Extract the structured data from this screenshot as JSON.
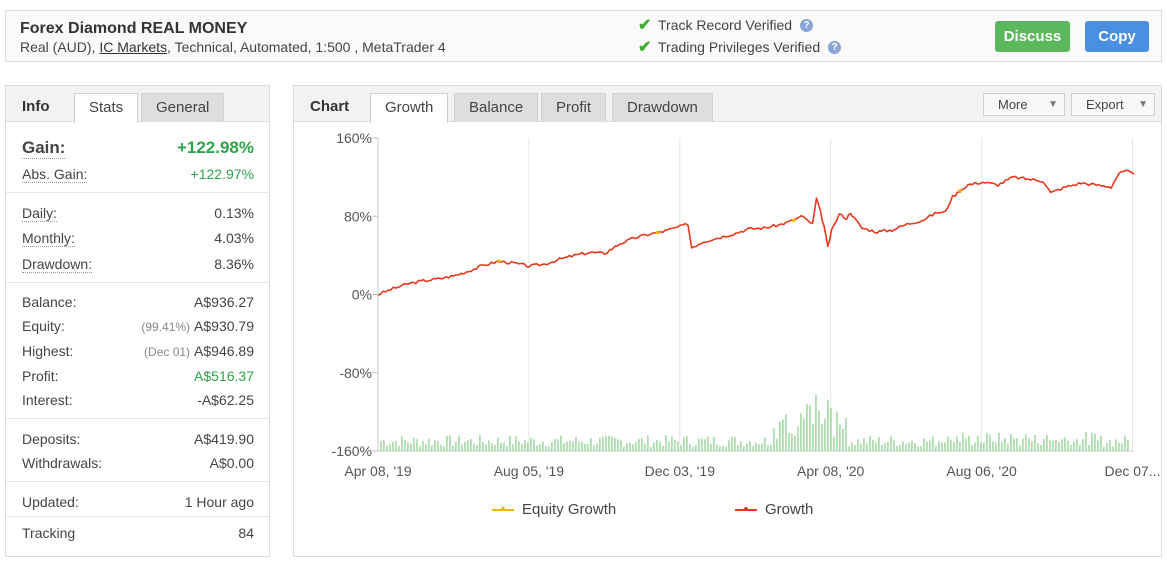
{
  "header": {
    "title": "Forex Diamond REAL MONEY",
    "subtitle_pre": "Real (AUD), ",
    "broker": "IC Markets",
    "subtitle_post": ", Technical, Automated, 1:500 , MetaTrader 4",
    "verified": [
      {
        "label": "Track Record Verified",
        "icon": "check-icon"
      },
      {
        "label": "Trading Privileges Verified",
        "icon": "check-icon"
      }
    ],
    "discuss_label": "Discuss",
    "copy_label": "Copy"
  },
  "info": {
    "title": "Info",
    "tabs": [
      "Stats",
      "General"
    ],
    "gain_label": "Gain:",
    "gain_value": "+122.98%",
    "abs_gain_label": "Abs. Gain:",
    "abs_gain_value": "+122.97%",
    "daily_label": "Daily:",
    "daily_value": "0.13%",
    "monthly_label": "Monthly:",
    "monthly_value": "4.03%",
    "drawdown_label": "Drawdown:",
    "drawdown_value": "8.36%",
    "balance_label": "Balance:",
    "balance_value": "A$936.27",
    "equity_label": "Equity:",
    "equity_pct": "(99.41%)",
    "equity_value": "A$930.79",
    "highest_label": "Highest:",
    "highest_date": "(Dec 01)",
    "highest_value": "A$946.89",
    "profit_label": "Profit:",
    "profit_value": "A$516.37",
    "interest_label": "Interest:",
    "interest_value": "-A$62.25",
    "deposits_label": "Deposits:",
    "deposits_value": "A$419.90",
    "withdrawals_label": "Withdrawals:",
    "withdrawals_value": "A$0.00",
    "updated_label": "Updated:",
    "updated_value": "1 Hour ago",
    "tracking_label": "Tracking",
    "tracking_value": "84"
  },
  "chart_panel": {
    "title": "Chart",
    "tabs": [
      "Growth",
      "Balance",
      "Profit",
      "Drawdown"
    ],
    "more_label": "More",
    "export_label": "Export"
  },
  "chart_data": {
    "type": "line",
    "yticks": [
      "160%",
      "80%",
      "0%",
      "-80%",
      "-160%"
    ],
    "ytick_values": [
      160,
      80,
      0,
      -80,
      -160
    ],
    "ylim": [
      -160,
      160
    ],
    "xticks": [
      "Apr 08, '19",
      "Aug 05, '19",
      "Dec 03, '19",
      "Apr 08, '20",
      "Aug 06, '20",
      "Dec 07..."
    ],
    "grid": true,
    "legend_position": "bottom",
    "colors": {
      "growth": "#e8391d",
      "equity": "#f5b400",
      "volume": "#9fd89f",
      "grid": "#e6e6e6"
    },
    "series": [
      {
        "name": "Equity Growth",
        "color": "#f5b400"
      },
      {
        "name": "Growth",
        "color": "#e8391d"
      }
    ],
    "growth_points": [
      [
        0,
        0
      ],
      [
        0.02,
        6
      ],
      [
        0.04,
        11
      ],
      [
        0.06,
        14
      ],
      [
        0.08,
        16
      ],
      [
        0.1,
        19
      ],
      [
        0.12,
        24
      ],
      [
        0.14,
        30
      ],
      [
        0.16,
        34
      ],
      [
        0.18,
        32
      ],
      [
        0.2,
        29
      ],
      [
        0.22,
        31
      ],
      [
        0.24,
        36
      ],
      [
        0.26,
        40
      ],
      [
        0.28,
        43
      ],
      [
        0.3,
        42
      ],
      [
        0.32,
        52
      ],
      [
        0.34,
        58
      ],
      [
        0.36,
        62
      ],
      [
        0.38,
        65
      ],
      [
        0.41,
        72
      ],
      [
        0.415,
        48
      ],
      [
        0.43,
        54
      ],
      [
        0.45,
        58
      ],
      [
        0.47,
        62
      ],
      [
        0.49,
        67
      ],
      [
        0.51,
        68
      ],
      [
        0.53,
        71
      ],
      [
        0.55,
        76
      ],
      [
        0.56,
        80
      ],
      [
        0.575,
        72
      ],
      [
        0.58,
        98
      ],
      [
        0.585,
        85
      ],
      [
        0.59,
        70
      ],
      [
        0.595,
        48
      ],
      [
        0.6,
        65
      ],
      [
        0.61,
        82
      ],
      [
        0.62,
        78
      ],
      [
        0.625,
        84
      ],
      [
        0.63,
        78
      ],
      [
        0.64,
        68
      ],
      [
        0.66,
        64
      ],
      [
        0.68,
        66
      ],
      [
        0.7,
        72
      ],
      [
        0.72,
        76
      ],
      [
        0.74,
        84
      ],
      [
        0.75,
        84
      ],
      [
        0.76,
        100
      ],
      [
        0.78,
        112
      ],
      [
        0.8,
        115
      ],
      [
        0.82,
        112
      ],
      [
        0.84,
        120
      ],
      [
        0.86,
        118
      ],
      [
        0.88,
        116
      ],
      [
        0.89,
        104
      ],
      [
        0.91,
        110
      ],
      [
        0.93,
        114
      ],
      [
        0.95,
        112
      ],
      [
        0.97,
        110
      ],
      [
        0.98,
        124
      ],
      [
        0.99,
        126
      ],
      [
        1.0,
        123
      ]
    ]
  },
  "icons": {
    "check": "check-icon",
    "help": "question-mark-icon",
    "caret": "caret-down-icon"
  }
}
